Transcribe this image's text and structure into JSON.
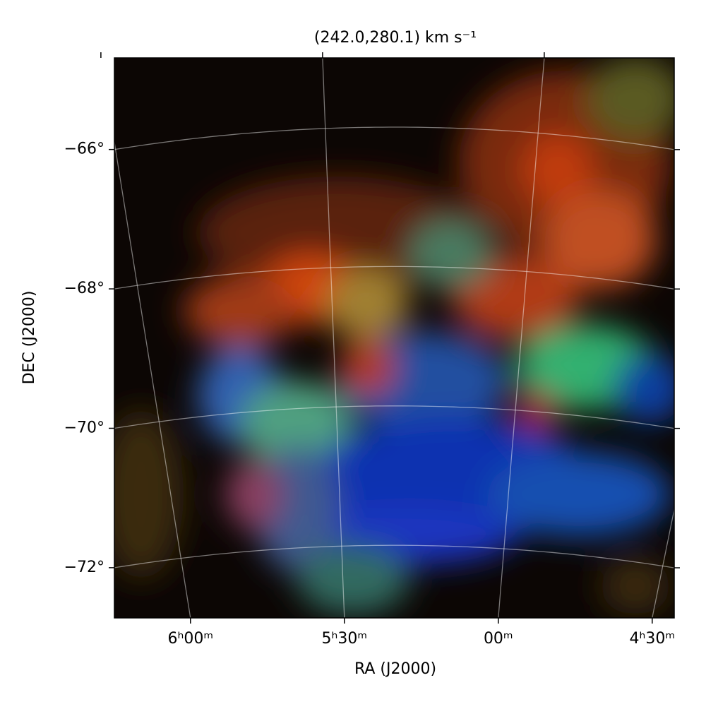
{
  "chart_data": {
    "type": "image",
    "title": "(242.0,280.1) km s⁻¹",
    "x_label": "RA (J2000)",
    "y_label": "DEC (J2000)",
    "xticks": [
      {
        "value": 6.0,
        "label": "6ʰ00ᵐ"
      },
      {
        "value": 5.5,
        "label": "5ʰ30ᵐ"
      },
      {
        "value": 5.0,
        "label": "00ᵐ"
      },
      {
        "value": 4.5,
        "label": "4ʰ30ᵐ"
      }
    ],
    "yticks": [
      {
        "value": -66,
        "label": "−66°"
      },
      {
        "value": -68,
        "label": "−68°"
      },
      {
        "value": -70,
        "label": "−70°"
      },
      {
        "value": -72,
        "label": "−72°"
      }
    ],
    "grid": true
  }
}
